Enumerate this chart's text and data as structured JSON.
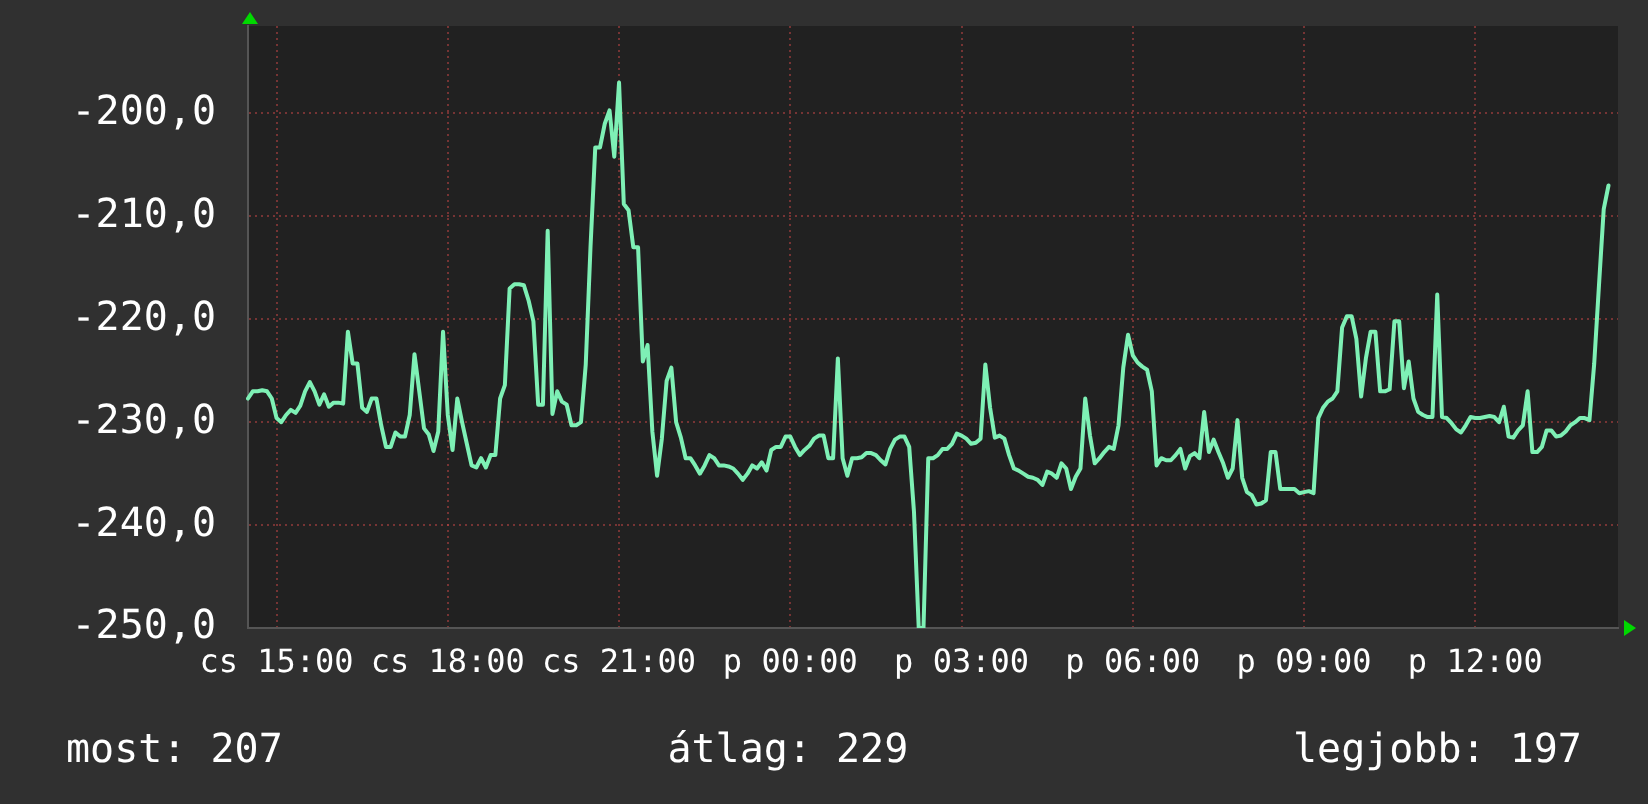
{
  "chart_data": {
    "type": "line",
    "categories": [
      null,
      null,
      null,
      null,
      null,
      null,
      "cs 15:00",
      null,
      null,
      null,
      null,
      null,
      null,
      null,
      null,
      null,
      null,
      null,
      null,
      null,
      null,
      null,
      null,
      null,
      null,
      null,
      null,
      null,
      null,
      null,
      null,
      null,
      null,
      null,
      null,
      null,
      null,
      null,
      null,
      null,
      null,
      null,
      "cs 18:00",
      null,
      null,
      null,
      null,
      null,
      null,
      null,
      null,
      null,
      null,
      null,
      null,
      null,
      null,
      null,
      null,
      null,
      null,
      null,
      null,
      null,
      null,
      null,
      null,
      null,
      null,
      null,
      null,
      null,
      null,
      null,
      null,
      null,
      null,
      null,
      "cs 21:00",
      null,
      null,
      null,
      null,
      null,
      null,
      null,
      null,
      null,
      null,
      null,
      null,
      null,
      null,
      null,
      null,
      null,
      null,
      null,
      null,
      null,
      null,
      null,
      null,
      null,
      null,
      null,
      null,
      null,
      null,
      null,
      null,
      null,
      null,
      null,
      "p 00:00",
      null,
      null,
      null,
      null,
      null,
      null,
      null,
      null,
      null,
      null,
      null,
      null,
      null,
      null,
      null,
      null,
      null,
      null,
      null,
      null,
      null,
      null,
      null,
      null,
      null,
      null,
      null,
      null,
      null,
      null,
      null,
      null,
      null,
      null,
      null,
      "p 03:00",
      null,
      null,
      null,
      null,
      null,
      null,
      null,
      null,
      null,
      null,
      null,
      null,
      null,
      null,
      null,
      null,
      null,
      null,
      null,
      null,
      null,
      null,
      null,
      null,
      null,
      null,
      null,
      null,
      null,
      null,
      null,
      null,
      null,
      null,
      null,
      "p 06:00",
      null,
      null,
      null,
      null,
      null,
      null,
      null,
      null,
      null,
      null,
      null,
      null,
      null,
      null,
      null,
      null,
      null,
      null,
      null,
      null,
      null,
      null,
      null,
      null,
      null,
      null,
      null,
      null,
      null,
      null,
      null,
      null,
      null,
      null,
      null,
      "p 09:00",
      null,
      null,
      null,
      null,
      null,
      null,
      null,
      null,
      null,
      null,
      null,
      null,
      null,
      null,
      null,
      null,
      null,
      null,
      null,
      null,
      null,
      null,
      null,
      null,
      null,
      null,
      null,
      null,
      null,
      null,
      null,
      null,
      null,
      null,
      null,
      "p 12:00",
      null,
      null,
      null,
      null,
      null,
      null,
      null,
      null,
      null,
      null,
      null,
      null,
      null,
      null,
      null,
      null,
      null,
      null,
      null,
      null,
      null,
      null,
      null,
      null,
      null,
      null,
      null,
      null,
      null,
      null
    ],
    "series": [
      {
        "color": "#7ef0b5",
        "values": [
          -227.7,
          -227.0,
          -227.0,
          -226.9,
          -227.0,
          -227.7,
          -229.6,
          -230.0,
          -229.3,
          -228.8,
          -229.1,
          -228.4,
          -227.0,
          -226.1,
          -227.0,
          -228.3,
          -227.3,
          -228.5,
          -228.1,
          -228.1,
          -228.2,
          -221.2,
          -224.3,
          -224.3,
          -228.6,
          -229.0,
          -227.7,
          -227.7,
          -230.3,
          -232.4,
          -232.4,
          -231.0,
          -231.4,
          -231.4,
          -229.3,
          -223.4,
          -227.0,
          -230.6,
          -231.2,
          -232.8,
          -230.9,
          -221.2,
          -229.3,
          -232.7,
          -227.7,
          -230.0,
          -232.1,
          -234.2,
          -234.4,
          -233.5,
          -234.4,
          -233.2,
          -233.2,
          -227.7,
          -226.4,
          -217.0,
          -216.6,
          -216.6,
          -216.7,
          -218.2,
          -220.2,
          -228.3,
          -228.3,
          -211.4,
          -229.2,
          -227.0,
          -228.0,
          -228.3,
          -230.3,
          -230.3,
          -230.0,
          -224.4,
          -213.0,
          -203.3,
          -203.3,
          -201.0,
          -199.7,
          -204.2,
          -197.0,
          -208.8,
          -209.4,
          -213.0,
          -213.0,
          -224.1,
          -222.5,
          -230.9,
          -235.2,
          -231.6,
          -226.0,
          -224.7,
          -230.0,
          -231.5,
          -233.5,
          -233.5,
          -234.2,
          -235.0,
          -234.2,
          -233.2,
          -233.5,
          -234.2,
          -234.2,
          -234.3,
          -234.5,
          -235.0,
          -235.6,
          -235.0,
          -234.2,
          -234.5,
          -233.9,
          -234.7,
          -232.7,
          -232.4,
          -232.4,
          -231.4,
          -231.4,
          -232.4,
          -233.2,
          -232.7,
          -232.3,
          -231.6,
          -231.3,
          -231.3,
          -233.5,
          -233.5,
          -223.8,
          -233.5,
          -235.2,
          -233.5,
          -233.5,
          -233.4,
          -233.0,
          -233.0,
          -233.2,
          -233.7,
          -234.1,
          -232.6,
          -231.7,
          -231.4,
          -231.4,
          -232.4,
          -238.7,
          -250.0,
          -250.0,
          -233.5,
          -233.5,
          -233.2,
          -232.6,
          -232.6,
          -232.1,
          -231.1,
          -231.3,
          -231.6,
          -232.1,
          -232.0,
          -231.6,
          -224.4,
          -228.6,
          -231.5,
          -231.3,
          -231.6,
          -233.2,
          -234.5,
          -234.7,
          -235.0,
          -235.3,
          -235.4,
          -235.6,
          -236.1,
          -234.8,
          -235.0,
          -235.4,
          -234.0,
          -234.5,
          -236.5,
          -235.3,
          -234.5,
          -227.7,
          -231.3,
          -234.0,
          -233.5,
          -232.9,
          -232.4,
          -232.6,
          -230.3,
          -224.7,
          -221.5,
          -223.5,
          -224.2,
          -224.6,
          -224.9,
          -227.0,
          -234.2,
          -233.5,
          -233.7,
          -233.7,
          -233.2,
          -232.6,
          -234.5,
          -233.3,
          -233.0,
          -233.5,
          -229.0,
          -232.9,
          -231.7,
          -232.9,
          -234.0,
          -235.4,
          -234.5,
          -229.8,
          -235.4,
          -236.8,
          -237.1,
          -238.0,
          -237.9,
          -237.6,
          -232.9,
          -232.9,
          -236.5,
          -236.5,
          -236.5,
          -236.5,
          -236.9,
          -236.8,
          -236.7,
          -236.9,
          -229.6,
          -228.6,
          -228.0,
          -227.7,
          -227.0,
          -220.8,
          -219.7,
          -219.7,
          -221.9,
          -227.5,
          -223.8,
          -221.2,
          -221.2,
          -227.0,
          -227.0,
          -226.8,
          -220.2,
          -220.2,
          -226.7,
          -224.1,
          -227.7,
          -229.0,
          -229.3,
          -229.5,
          -229.5,
          -217.6,
          -229.5,
          -229.6,
          -230.1,
          -230.7,
          -231.0,
          -230.3,
          -229.5,
          -229.6,
          -229.6,
          -229.5,
          -229.4,
          -229.5,
          -230.0,
          -228.5,
          -231.4,
          -231.5,
          -230.8,
          -230.3,
          -227.0,
          -232.9,
          -232.9,
          -232.4,
          -230.8,
          -230.8,
          -231.4,
          -231.3,
          -230.9,
          -230.3,
          -230.0,
          -229.6,
          -229.6,
          -229.8,
          -224.3,
          -216.7,
          -209.3,
          -207.0,
          null,
          null
        ]
      }
    ],
    "ylim": [
      -250,
      -191.5
    ],
    "yticks": [
      {
        "value": -250,
        "label": "-250,0"
      },
      {
        "value": -240,
        "label": "-240,0"
      },
      {
        "value": -230,
        "label": "-230,0"
      },
      {
        "value": -220,
        "label": "-220,0"
      },
      {
        "value": -210,
        "label": "-210,0"
      },
      {
        "value": -200,
        "label": "-200,0"
      }
    ],
    "grid": true,
    "annotations": [
      "most: 207",
      "átlag: 229",
      "legjobb: 197"
    ]
  }
}
